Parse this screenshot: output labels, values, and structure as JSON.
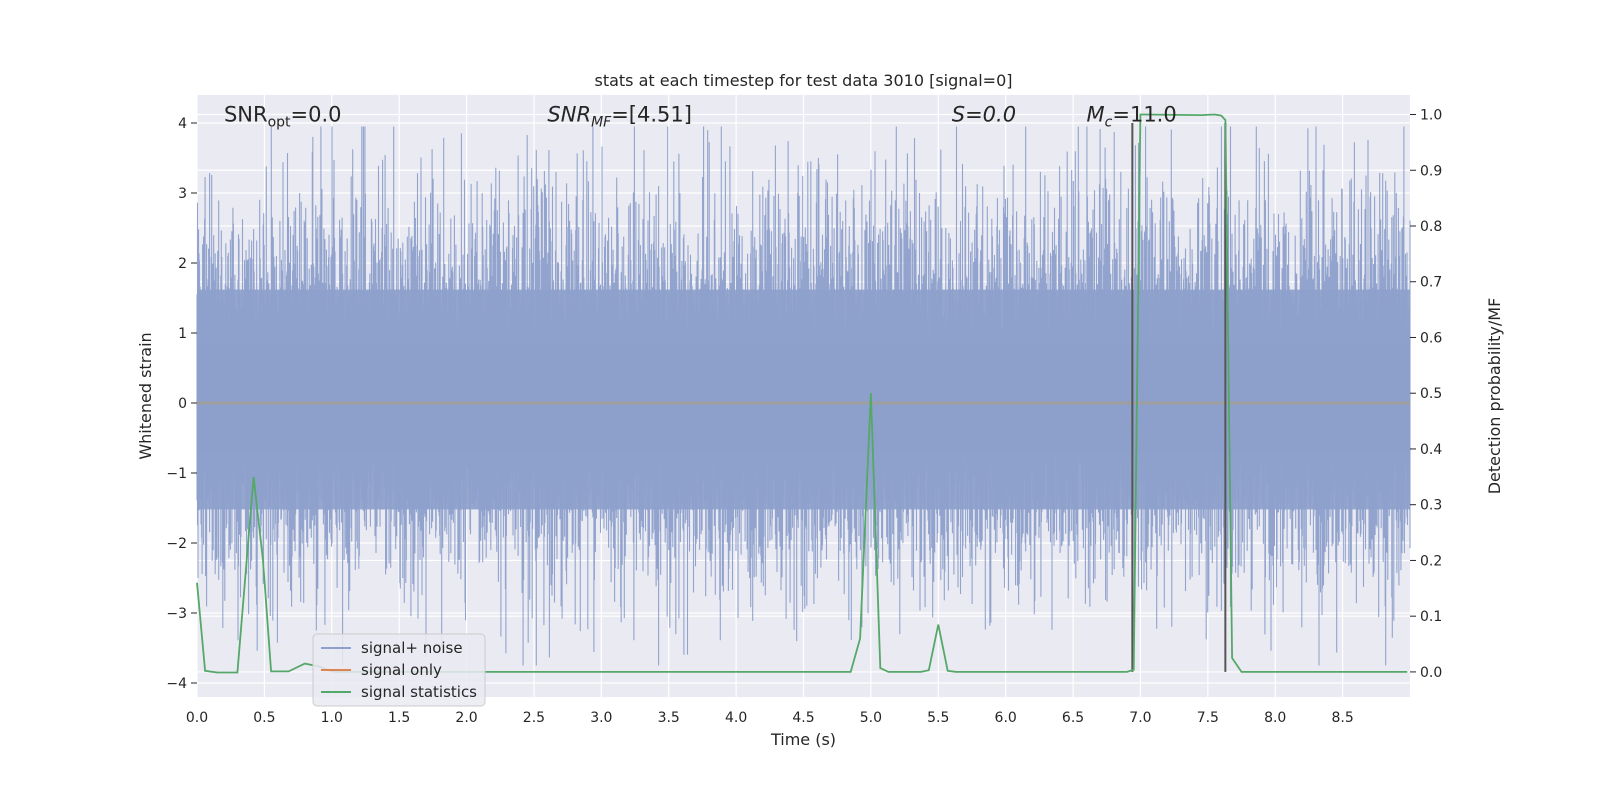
{
  "chart_data": {
    "type": "line",
    "title": "stats at each timestep for test data 3010 [signal=0]",
    "xlabel": "Time (s)",
    "ylabel": "Whitened strain",
    "y2label": "Detection probability/MF",
    "xlim": [
      0.0,
      9.0
    ],
    "ylim": [
      -4.2,
      4.4
    ],
    "y2lim": [
      -0.045,
      1.035
    ],
    "x_ticks": [
      0.0,
      0.5,
      1.0,
      1.5,
      2.0,
      2.5,
      3.0,
      3.5,
      4.0,
      4.5,
      5.0,
      5.5,
      6.0,
      6.5,
      7.0,
      7.5,
      8.0,
      8.5
    ],
    "x_tick_labels": [
      "0.0",
      "0.5",
      "1.0",
      "1.5",
      "2.0",
      "2.5",
      "3.0",
      "3.5",
      "4.0",
      "4.5",
      "5.0",
      "5.5",
      "6.0",
      "6.5",
      "7.0",
      "7.5",
      "8.0",
      "8.5"
    ],
    "y_ticks": [
      -4,
      -3,
      -2,
      -1,
      0,
      1,
      2,
      3,
      4
    ],
    "y_tick_labels": [
      "−4",
      "−3",
      "−2",
      "−1",
      "0",
      "1",
      "2",
      "3",
      "4"
    ],
    "y2_ticks": [
      0.0,
      0.1,
      0.2,
      0.3,
      0.4,
      0.5,
      0.6,
      0.7,
      0.8,
      0.9,
      1.0
    ],
    "y2_tick_labels": [
      "0.0",
      "0.1",
      "0.2",
      "0.3",
      "0.4",
      "0.5",
      "0.6",
      "0.7",
      "0.8",
      "0.9",
      "1.0"
    ],
    "grid": true,
    "legend_position": "lower-left",
    "series": [
      {
        "name": "signal+ noise",
        "color": "#8da0cb",
        "axis": "left",
        "description_values": "whitened noise strain, roughly Gaussian, std ~1, spanning about -3.7 to 3.9"
      },
      {
        "name": "signal only",
        "color": "#dd8452",
        "axis": "left",
        "x": [
          0.0,
          9.0
        ],
        "y": [
          0.0,
          0.0
        ]
      },
      {
        "name": "signal statistics",
        "color": "#55a868",
        "axis": "right",
        "x": [
          0.0,
          0.06,
          0.15,
          0.3,
          0.42,
          0.49,
          0.55,
          0.68,
          0.8,
          0.9,
          1.0,
          1.05,
          4.85,
          4.92,
          5.0,
          5.07,
          5.13,
          5.2,
          5.37,
          5.43,
          5.5,
          5.57,
          5.63,
          5.7,
          6.9,
          6.95,
          7.0,
          7.45,
          7.55,
          7.6,
          7.63,
          7.68,
          7.75,
          8.5,
          8.98
        ],
        "y": [
          0.16,
          0.002,
          -0.001,
          -0.001,
          0.35,
          0.2,
          0.001,
          0.001,
          0.015,
          0.01,
          0.001,
          0.0,
          0.0,
          0.06,
          0.5,
          0.007,
          0.0,
          0.0,
          0.0,
          0.003,
          0.085,
          0.002,
          0.0,
          0.0,
          0.0,
          0.004,
          1.0,
          0.999,
          1.0,
          0.998,
          0.99,
          0.025,
          0.0,
          0.0,
          0.0
        ]
      }
    ],
    "vlines": [
      {
        "x": 6.94,
        "color": "#555555",
        "ymin": -4.0,
        "ymax": 4.0
      },
      {
        "x": 7.63,
        "color": "#555555",
        "ymin": -4.0,
        "ymax": 4.0
      }
    ],
    "annotations": [
      {
        "x": 0.2,
        "y": 4.05,
        "text": "SNR_opt=0.0",
        "italic": false
      },
      {
        "x": 2.6,
        "y": 4.05,
        "text": "SNR_MF=[4.51]",
        "italic": true
      },
      {
        "x": 5.6,
        "y": 4.05,
        "text": "S=0.0",
        "italic": true
      },
      {
        "x": 6.6,
        "y": 4.05,
        "text": "M_c=11.0",
        "italic": true
      }
    ],
    "bands": [
      {
        "ymin": -0.72,
        "ymax": 0.85,
        "opacity": 1.0
      },
      {
        "ymin": -1.52,
        "ymax": 1.62,
        "opacity": 0.92
      }
    ]
  }
}
